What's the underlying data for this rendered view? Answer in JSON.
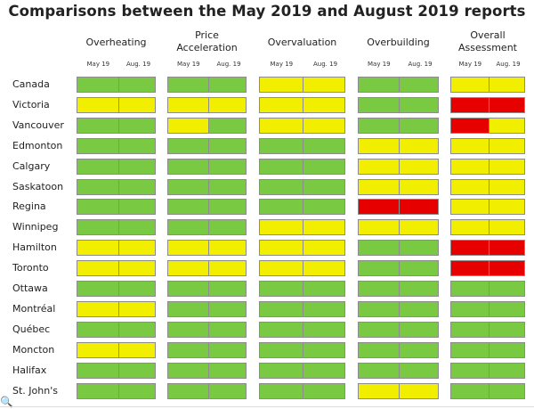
{
  "chart_data": {
    "type": "heatmap",
    "title": "Comparisons between the May 2019 and August 2019 reports",
    "groups": [
      "Overheating",
      "Price Acceleration",
      "Overvaluation",
      "Overbuilding",
      "Overall Assessment"
    ],
    "periods": [
      "May 19",
      "Aug. 19"
    ],
    "legend": {
      "G": "green",
      "Y": "yellow",
      "R": "red"
    },
    "colors": {
      "G": "#7ac943",
      "Y": "#f2ee00",
      "R": "#e60000"
    },
    "rows": [
      {
        "city": "Canada",
        "values": [
          "G",
          "G",
          "G",
          "G",
          "Y",
          "Y",
          "G",
          "G",
          "Y",
          "Y"
        ]
      },
      {
        "city": "Victoria",
        "values": [
          "Y",
          "Y",
          "Y",
          "Y",
          "Y",
          "Y",
          "G",
          "G",
          "R",
          "R"
        ]
      },
      {
        "city": "Vancouver",
        "values": [
          "G",
          "G",
          "Y",
          "G",
          "Y",
          "Y",
          "G",
          "G",
          "R",
          "Y"
        ]
      },
      {
        "city": "Edmonton",
        "values": [
          "G",
          "G",
          "G",
          "G",
          "G",
          "G",
          "Y",
          "Y",
          "Y",
          "Y"
        ]
      },
      {
        "city": "Calgary",
        "values": [
          "G",
          "G",
          "G",
          "G",
          "G",
          "G",
          "Y",
          "Y",
          "Y",
          "Y"
        ]
      },
      {
        "city": "Saskatoon",
        "values": [
          "G",
          "G",
          "G",
          "G",
          "G",
          "G",
          "Y",
          "Y",
          "Y",
          "Y"
        ]
      },
      {
        "city": "Regina",
        "values": [
          "G",
          "G",
          "G",
          "G",
          "G",
          "G",
          "R",
          "R",
          "Y",
          "Y"
        ]
      },
      {
        "city": "Winnipeg",
        "values": [
          "G",
          "G",
          "G",
          "G",
          "Y",
          "Y",
          "Y",
          "Y",
          "Y",
          "Y"
        ]
      },
      {
        "city": "Hamilton",
        "values": [
          "Y",
          "Y",
          "Y",
          "Y",
          "Y",
          "Y",
          "G",
          "G",
          "R",
          "R"
        ]
      },
      {
        "city": "Toronto",
        "values": [
          "Y",
          "Y",
          "Y",
          "Y",
          "Y",
          "Y",
          "G",
          "G",
          "R",
          "R"
        ]
      },
      {
        "city": "Ottawa",
        "values": [
          "G",
          "G",
          "G",
          "G",
          "G",
          "G",
          "G",
          "G",
          "G",
          "G"
        ]
      },
      {
        "city": "Montréal",
        "values": [
          "Y",
          "Y",
          "G",
          "G",
          "G",
          "G",
          "G",
          "G",
          "G",
          "G"
        ]
      },
      {
        "city": "Québec",
        "values": [
          "G",
          "G",
          "G",
          "G",
          "G",
          "G",
          "G",
          "G",
          "G",
          "G"
        ]
      },
      {
        "city": "Moncton",
        "values": [
          "Y",
          "Y",
          "G",
          "G",
          "G",
          "G",
          "G",
          "G",
          "G",
          "G"
        ]
      },
      {
        "city": "Halifax",
        "values": [
          "G",
          "G",
          "G",
          "G",
          "G",
          "G",
          "G",
          "G",
          "G",
          "G"
        ]
      },
      {
        "city": "St. John's",
        "values": [
          "G",
          "G",
          "G",
          "G",
          "G",
          "G",
          "Y",
          "Y",
          "G",
          "G"
        ]
      }
    ]
  }
}
